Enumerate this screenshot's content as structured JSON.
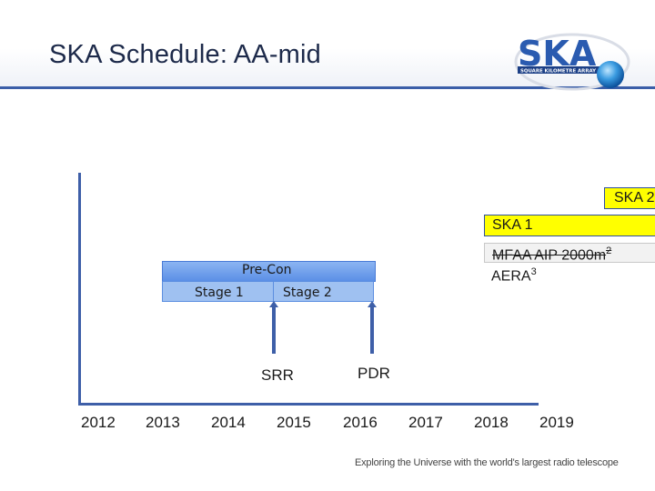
{
  "title": "SKA Schedule: AA-mid",
  "logo": {
    "text": "SKA",
    "subtitle": "SQUARE KILOMETRE ARRAY"
  },
  "timeline": {
    "years": [
      "2012",
      "2013",
      "2014",
      "2015",
      "2016",
      "2017",
      "2018",
      "2019"
    ]
  },
  "bars": {
    "ska2": "SKA 2",
    "ska1": "SKA 1",
    "mfaa_text": "MFAA AIP 2000m",
    "mfaa_sup": "2",
    "aera_text": "AERA",
    "aera_sup": "3",
    "precon": "Pre-Con",
    "stage1": "Stage 1",
    "stage2": "Stage 2"
  },
  "milestones": {
    "srr": "SRR",
    "pdr": "PDR"
  },
  "footer": "Exploring the Universe with the world's largest radio telescope",
  "colors": {
    "yellow": "#ffff00",
    "blue_header": "#3a5ea8",
    "precon": "#6f9ee9",
    "stage": "#9fc1f1"
  }
}
